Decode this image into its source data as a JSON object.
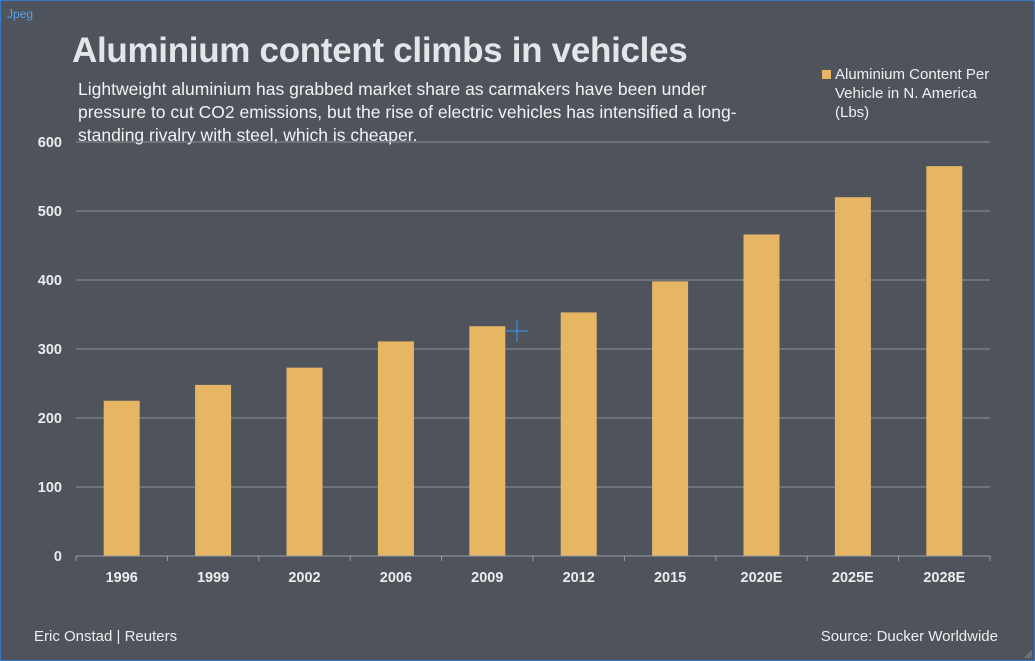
{
  "window": {
    "tag": "Jpeg"
  },
  "header": {
    "title": "Aluminium content climbs in vehicles",
    "subtitle": "Lightweight aluminium has grabbed market share as carmakers have been under pressure to cut CO2 emissions, but the rise of electric vehicles has intensified a long-standing rivalry with steel, which is cheaper."
  },
  "footer": {
    "credit": "Eric Onstad | Reuters",
    "source": "Source: Ducker Worldwide"
  },
  "colors": {
    "background": "#4f535c",
    "bar": "#e6b665",
    "grid": "#8c9099",
    "text": "#ececec"
  },
  "chart_data": {
    "type": "bar",
    "title": "Aluminium content climbs in vehicles",
    "categories": [
      "1996",
      "1999",
      "2002",
      "2006",
      "2009",
      "2012",
      "2015",
      "2020E",
      "2025E",
      "2028E"
    ],
    "series": [
      {
        "name": "Aluminium Content Per Vehicle in N. America (Lbs)",
        "values": [
          225,
          248,
          273,
          311,
          333,
          353,
          398,
          466,
          520,
          565
        ]
      }
    ],
    "ylim": [
      0,
      600
    ],
    "yticks": [
      "0",
      "100",
      "200",
      "300",
      "400",
      "500",
      "600"
    ],
    "grid": true,
    "legend_position": "top-right"
  }
}
